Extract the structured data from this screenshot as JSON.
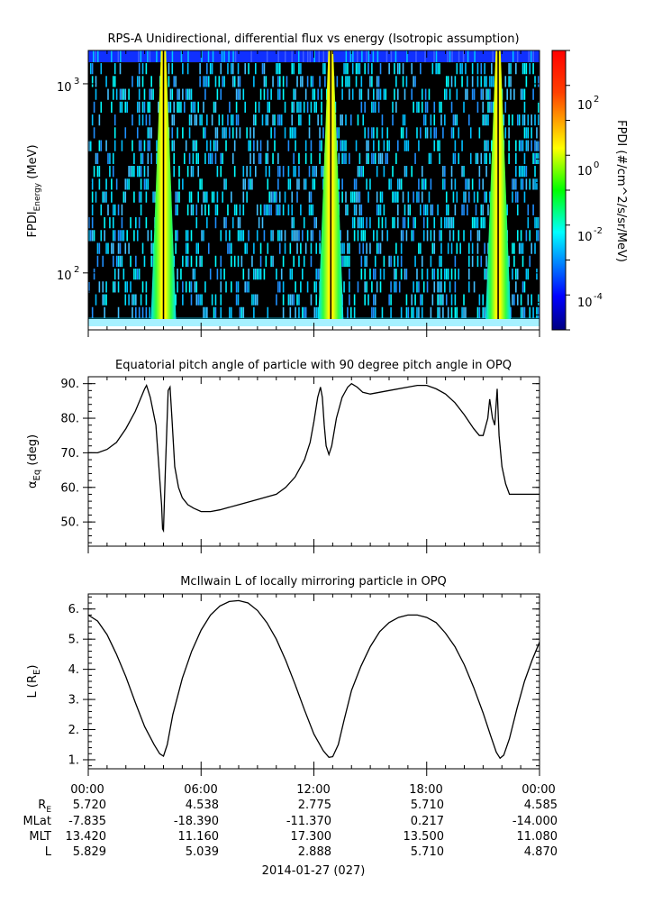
{
  "panels": [
    {
      "title": "RPS-A Unidirectional, differential flux vs energy (Isotropic assumption)",
      "ylabel_main": "FPDI",
      "ylabel_sub": "Energy",
      "ylabel_unit": "(MeV)",
      "yticks": [
        "10",
        "10"
      ],
      "ytick_exps": [
        "3",
        "2"
      ]
    },
    {
      "title": "Equatorial pitch angle of particle with 90 degree pitch angle in OPQ",
      "ylabel_main": "α",
      "ylabel_sub": "Eq",
      "ylabel_unit": "(deg)",
      "yticks": [
        "90.",
        "80.",
        "70.",
        "60.",
        "50."
      ]
    },
    {
      "title": "McIlwain L of locally mirroring particle in OPQ",
      "ylabel_main": "L (R",
      "ylabel_sub": "E",
      "ylabel_unit": ")",
      "yticks": [
        "6.",
        "5.",
        "4.",
        "3.",
        "2.",
        "1."
      ]
    }
  ],
  "colorbar": {
    "label": "FPDI (#/cm^2/s/sr/MeV)",
    "ticks": [
      "10",
      "10",
      "10",
      "10"
    ],
    "tick_exps": [
      "2",
      "0",
      "-2",
      "-4"
    ]
  },
  "ephemeris": {
    "time_labels": [
      "00:00",
      "06:00",
      "12:00",
      "18:00",
      "00:00"
    ],
    "rows": [
      {
        "label": "R",
        "sub": "E",
        "values": [
          "5.720",
          "4.538",
          "2.775",
          "5.710",
          "4.585"
        ]
      },
      {
        "label": "MLat",
        "sub": "",
        "values": [
          "-7.835",
          "-18.390",
          "-11.370",
          "0.217",
          "-14.000"
        ]
      },
      {
        "label": "MLT",
        "sub": "",
        "values": [
          "13.420",
          "11.160",
          "17.300",
          "13.500",
          "11.080"
        ]
      },
      {
        "label": "L",
        "sub": "",
        "values": [
          "5.829",
          "5.039",
          "2.888",
          "5.710",
          "4.870"
        ]
      }
    ],
    "date": "2014-01-27 (027)"
  },
  "chart_data": [
    {
      "type": "heatmap",
      "title": "RPS-A Unidirectional, differential flux vs energy (Isotropic assumption)",
      "ylabel": "FPDI_Energy (MeV)",
      "xlabel": "2014-01-27 (027)",
      "yscale": "log",
      "ylim": [
        50,
        1500
      ],
      "xlim_hours": [
        0,
        24
      ],
      "perigee_hours": [
        4.0,
        12.9,
        21.8
      ],
      "zlabel": "FPDI (#/cm^2/s/sr/MeV)",
      "zscale": "log",
      "zlim": [
        1e-05,
        1000
      ]
    },
    {
      "type": "line",
      "title": "Equatorial pitch angle of particle with 90 degree pitch angle in OPQ",
      "ylabel": "α_Eq (deg)",
      "ylim": [
        43,
        92
      ],
      "xlim_hours": [
        0,
        24
      ],
      "x": [
        0,
        0.5,
        1.0,
        1.5,
        2.0,
        2.5,
        3.0,
        3.1,
        3.3,
        3.6,
        3.9,
        3.95,
        4.0,
        4.1,
        4.25,
        4.35,
        4.45,
        4.6,
        4.8,
        5.0,
        5.3,
        5.6,
        6.0,
        6.5,
        7.0,
        8.0,
        9.0,
        10.0,
        10.5,
        11.0,
        11.5,
        11.8,
        12.0,
        12.2,
        12.35,
        12.45,
        12.55,
        12.65,
        12.8,
        12.95,
        13.2,
        13.5,
        13.8,
        14.0,
        14.3,
        14.6,
        15.0,
        16.0,
        17.0,
        17.5,
        18.0,
        18.5,
        19.0,
        19.5,
        20.0,
        20.5,
        20.8,
        21.0,
        21.1,
        21.25,
        21.35,
        21.5,
        21.62,
        21.75,
        21.85,
        22.0,
        22.2,
        22.4,
        23.0,
        24.0
      ],
      "y": [
        70,
        70,
        71,
        73,
        77,
        82,
        88.5,
        89.5,
        86,
        78,
        55,
        48,
        47.5,
        65,
        88,
        89,
        80,
        66,
        60,
        57,
        55,
        54,
        53,
        53,
        53.5,
        55,
        56.5,
        58,
        60,
        63,
        68,
        73,
        79,
        86,
        89,
        86,
        78,
        72,
        69.5,
        72,
        80,
        86,
        89,
        90,
        89,
        87.5,
        87,
        88,
        89,
        89.5,
        89.5,
        88.5,
        87,
        84.5,
        81,
        77,
        75,
        75,
        77,
        80,
        85.5,
        80,
        78,
        88.5,
        75,
        66,
        61,
        58,
        58,
        58
      ]
    },
    {
      "type": "line",
      "title": "McIlwain L of locally mirroring particle in OPQ",
      "ylabel": "L (R_E)",
      "ylim": [
        0.7,
        6.5
      ],
      "xlim_hours": [
        0,
        24
      ],
      "x": [
        0,
        0.5,
        1.0,
        1.5,
        2.0,
        2.5,
        3.0,
        3.5,
        3.8,
        4.0,
        4.2,
        4.5,
        5.0,
        5.5,
        6.0,
        6.5,
        7.0,
        7.5,
        8.0,
        8.5,
        9.0,
        9.5,
        10.0,
        10.5,
        11.0,
        11.5,
        12.0,
        12.5,
        12.8,
        13.0,
        13.3,
        13.6,
        14.0,
        14.5,
        15.0,
        15.5,
        16.0,
        16.5,
        17.0,
        17.5,
        18.0,
        18.5,
        19.0,
        19.5,
        20.0,
        20.5,
        21.0,
        21.4,
        21.7,
        21.9,
        22.1,
        22.4,
        22.8,
        23.2,
        23.6,
        24.0
      ],
      "y": [
        5.8,
        5.6,
        5.15,
        4.5,
        3.75,
        2.9,
        2.1,
        1.5,
        1.2,
        1.12,
        1.5,
        2.5,
        3.7,
        4.6,
        5.3,
        5.8,
        6.1,
        6.25,
        6.28,
        6.2,
        5.95,
        5.55,
        5.0,
        4.3,
        3.5,
        2.65,
        1.85,
        1.3,
        1.08,
        1.1,
        1.5,
        2.3,
        3.3,
        4.1,
        4.75,
        5.25,
        5.55,
        5.72,
        5.8,
        5.8,
        5.72,
        5.55,
        5.2,
        4.75,
        4.15,
        3.4,
        2.55,
        1.8,
        1.25,
        1.05,
        1.15,
        1.7,
        2.7,
        3.6,
        4.3,
        4.9
      ]
    }
  ]
}
